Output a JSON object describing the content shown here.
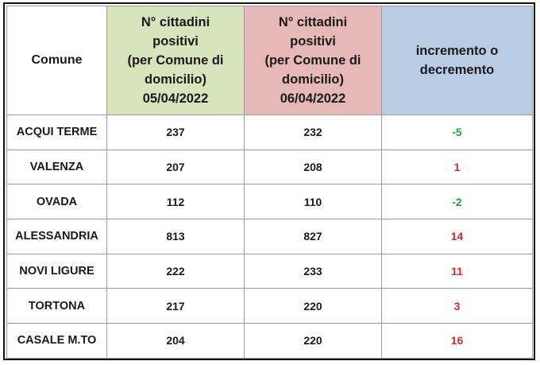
{
  "table": {
    "headers": {
      "comune": "Comune",
      "date1": [
        "N° cittadini",
        "positivi",
        "(per Comune di",
        "domicilio)",
        "05/04/2022"
      ],
      "date2": [
        "N° cittadini",
        "positivi",
        "(per Comune di",
        "domicilio)",
        "06/04/2022"
      ],
      "delta": [
        "incremento o",
        "decremento"
      ]
    },
    "header_colors": {
      "date1": "#d8e4bc",
      "date2": "#e6b8b7",
      "delta": "#b8cce4"
    },
    "delta_colors": {
      "decrease": "#2e9e3e",
      "increase": "#d62b2b"
    },
    "rows": [
      {
        "comune": "ACQUI TERME",
        "d1": "237",
        "d2": "232",
        "delta": "-5"
      },
      {
        "comune": "VALENZA",
        "d1": "207",
        "d2": "208",
        "delta": "1"
      },
      {
        "comune": "OVADA",
        "d1": "112",
        "d2": "110",
        "delta": "-2"
      },
      {
        "comune": "ALESSANDRIA",
        "d1": "813",
        "d2": "827",
        "delta": "14"
      },
      {
        "comune": "NOVI LIGURE",
        "d1": "222",
        "d2": "233",
        "delta": "11"
      },
      {
        "comune": "TORTONA",
        "d1": "217",
        "d2": "220",
        "delta": "3"
      },
      {
        "comune": "CASALE M.TO",
        "d1": "204",
        "d2": "220",
        "delta": "16"
      }
    ]
  }
}
